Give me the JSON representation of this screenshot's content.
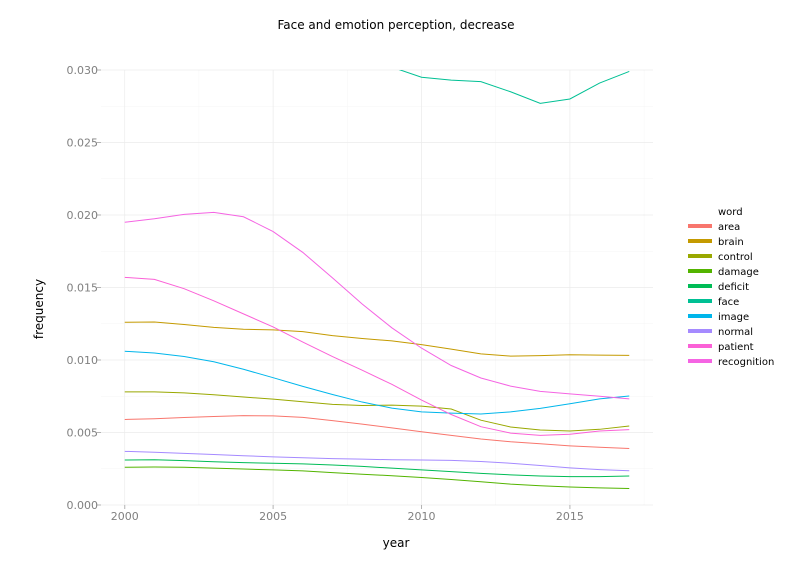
{
  "chart_data": {
    "type": "line",
    "title": "Face and emotion perception, decrease",
    "xlabel": "year",
    "ylabel": "frequency",
    "xlim": [
      1999.2,
      2017.8
    ],
    "ylim": [
      0.0,
      0.03
    ],
    "x_ticks": [
      2000,
      2005,
      2010,
      2015
    ],
    "x_tick_labels": [
      "2000",
      "2005",
      "2010",
      "2015"
    ],
    "y_ticks": [
      0.0,
      0.005,
      0.01,
      0.015,
      0.02,
      0.025,
      0.03
    ],
    "y_tick_labels": [
      "0.000",
      "0.005",
      "0.010",
      "0.015",
      "0.020",
      "0.025",
      "0.030"
    ],
    "grid": true,
    "legend": {
      "title": "word",
      "placement": "right"
    },
    "x": [
      2000,
      2001,
      2002,
      2003,
      2004,
      2005,
      2006,
      2007,
      2008,
      2009,
      2010,
      2011,
      2012,
      2013,
      2014,
      2015,
      2016,
      2017
    ],
    "series": [
      {
        "name": "area",
        "color": "#f8766d",
        "values": [
          0.0059,
          0.00595,
          0.00603,
          0.0061,
          0.00616,
          0.00615,
          0.00604,
          0.00582,
          0.00558,
          0.00532,
          0.00505,
          0.0048,
          0.00455,
          0.00436,
          0.00422,
          0.00408,
          0.00398,
          0.0039
        ]
      },
      {
        "name": "brain",
        "color": "#c49a00",
        "values": [
          0.0126,
          0.01262,
          0.01245,
          0.01225,
          0.01212,
          0.01208,
          0.01196,
          0.01168,
          0.01148,
          0.01132,
          0.01106,
          0.01075,
          0.01042,
          0.01027,
          0.0103,
          0.01036,
          0.01034,
          0.01032
        ]
      },
      {
        "name": "control",
        "color": "#99a800",
        "values": [
          0.0078,
          0.0078,
          0.00773,
          0.0076,
          0.00745,
          0.0073,
          0.00712,
          0.00694,
          0.00686,
          0.00689,
          0.00682,
          0.00662,
          0.00585,
          0.00538,
          0.00517,
          0.0051,
          0.00522,
          0.00545
        ]
      },
      {
        "name": "damage",
        "color": "#53b400",
        "values": [
          0.0026,
          0.00262,
          0.0026,
          0.00254,
          0.00248,
          0.00242,
          0.00235,
          0.00223,
          0.00212,
          0.00202,
          0.0019,
          0.00176,
          0.0016,
          0.00144,
          0.00133,
          0.00124,
          0.00118,
          0.00114
        ]
      },
      {
        "name": "deficit",
        "color": "#00bc56",
        "values": [
          0.0031,
          0.00312,
          0.00306,
          0.00298,
          0.00292,
          0.00288,
          0.00284,
          0.00276,
          0.00266,
          0.00254,
          0.00242,
          0.0023,
          0.00218,
          0.00208,
          0.002,
          0.00196,
          0.00196,
          0.002
        ]
      },
      {
        "name": "face",
        "color": "#00c094",
        "values": [
          null,
          null,
          null,
          null,
          null,
          null,
          null,
          null,
          null,
          0.0302,
          0.0295,
          0.0293,
          0.0292,
          0.0285,
          0.0277,
          0.028,
          0.0291,
          0.0299
        ]
      },
      {
        "name": "image",
        "color": "#00b6eb",
        "values": [
          0.0106,
          0.01048,
          0.01024,
          0.00988,
          0.00936,
          0.00878,
          0.00818,
          0.00762,
          0.0071,
          0.00668,
          0.00642,
          0.00634,
          0.00628,
          0.00642,
          0.00666,
          0.00698,
          0.00732,
          0.00752
        ]
      },
      {
        "name": "normal",
        "color": "#a58aff",
        "values": [
          0.0037,
          0.00364,
          0.00356,
          0.00348,
          0.0034,
          0.00332,
          0.00326,
          0.0032,
          0.00316,
          0.00312,
          0.0031,
          0.00308,
          0.003,
          0.00288,
          0.00272,
          0.00256,
          0.00244,
          0.00236
        ]
      },
      {
        "name": "patient",
        "color": "#fb61d7",
        "values": [
          0.0157,
          0.01556,
          0.01492,
          0.01408,
          0.01318,
          0.01228,
          0.01124,
          0.01024,
          0.0093,
          0.00832,
          0.00724,
          0.00624,
          0.0054,
          0.00496,
          0.0048,
          0.00488,
          0.0051,
          0.0052
        ]
      },
      {
        "name": "recognition",
        "color": "#f564e3",
        "values": [
          0.0195,
          0.01974,
          0.02004,
          0.02018,
          0.01988,
          0.01886,
          0.01742,
          0.01566,
          0.01386,
          0.01222,
          0.01082,
          0.00962,
          0.00876,
          0.0082,
          0.00784,
          0.00766,
          0.0075,
          0.00732
        ]
      }
    ]
  }
}
